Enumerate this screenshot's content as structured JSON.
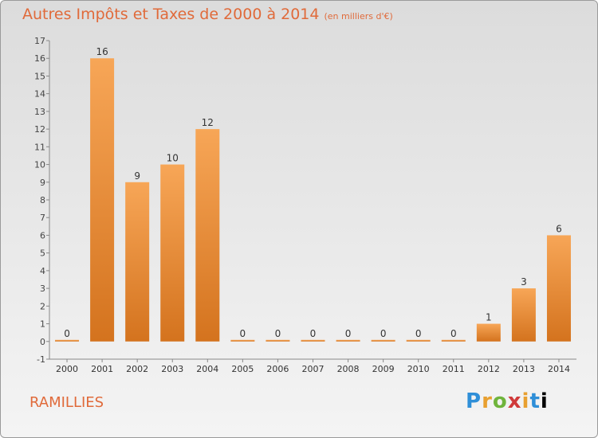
{
  "header": {
    "title": "Autres Impôts et Taxes de 2000 à 2014",
    "subtitle": "(en milliers d'€)"
  },
  "footer": {
    "commune": "RAMILLIES",
    "logo": [
      "P",
      "r",
      "o",
      "x",
      "i",
      "t",
      "i"
    ]
  },
  "colors": {
    "bar_light": "#f7a657",
    "bar_dark": "#d4731e",
    "accent": "#e06a3a"
  },
  "chart_data": {
    "type": "bar",
    "title": "Autres Impôts et Taxes de 2000 à 2014",
    "subtitle": "(en milliers d'€)",
    "categories": [
      "2000",
      "2001",
      "2002",
      "2003",
      "2004",
      "2005",
      "2006",
      "2007",
      "2008",
      "2009",
      "2010",
      "2011",
      "2012",
      "2013",
      "2014"
    ],
    "values": [
      0,
      16,
      9,
      10,
      12,
      0,
      0,
      0,
      0,
      0,
      0,
      0,
      1,
      3,
      6
    ],
    "data_labels": [
      "0",
      "16",
      "9",
      "10",
      "12",
      "0",
      "0",
      "0",
      "0",
      "0",
      "0",
      "0",
      "1",
      "3",
      "6"
    ],
    "ylim": [
      -1,
      17
    ],
    "yticks": [
      "-1",
      "0",
      "1",
      "2",
      "3",
      "4",
      "5",
      "6",
      "7",
      "8",
      "9",
      "10",
      "11",
      "12",
      "13",
      "14",
      "15",
      "16",
      "17"
    ],
    "grid": false,
    "xlabel": "",
    "ylabel": ""
  }
}
